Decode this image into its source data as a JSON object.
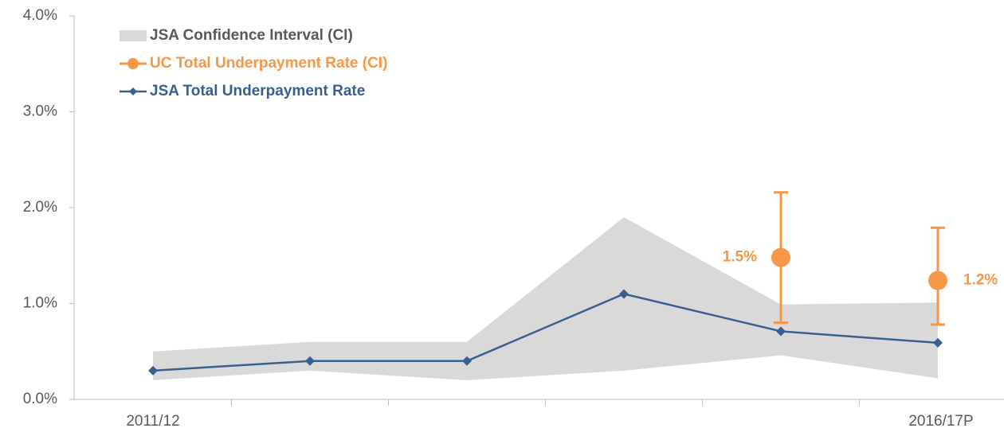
{
  "chart_data": {
    "type": "line",
    "categories": [
      "2011/12",
      null,
      null,
      null,
      null,
      "2016/17P"
    ],
    "ylim": [
      0,
      4
    ],
    "yticks": [
      {
        "value": 0,
        "label": "0.0%"
      },
      {
        "value": 1,
        "label": "1.0%"
      },
      {
        "value": 2,
        "label": "2.0%"
      },
      {
        "value": 3,
        "label": "3.0%"
      },
      {
        "value": 4,
        "label": "4.0%"
      }
    ],
    "series": [
      {
        "name": "JSA Confidence Interval (CI)",
        "color": "#d9d9d9",
        "lower": [
          0.2,
          0.3,
          0.2,
          0.3,
          0.46,
          0.22
        ],
        "upper": [
          0.5,
          0.6,
          0.6,
          1.9,
          0.99,
          1.01
        ]
      },
      {
        "name": "UC Total Underpayment Rate (CI)",
        "color": "#f79646",
        "values": [
          null,
          null,
          null,
          null,
          1.48,
          1.24
        ],
        "value_labels": [
          null,
          null,
          null,
          null,
          "1.5%",
          "1.2%"
        ],
        "lower": [
          null,
          null,
          null,
          null,
          0.8,
          0.78
        ],
        "upper": [
          null,
          null,
          null,
          null,
          2.16,
          1.79
        ]
      },
      {
        "name": "JSA Total Underpayment Rate",
        "color": "#3a5f8f",
        "values": [
          0.3,
          0.4,
          0.4,
          1.1,
          0.71,
          0.59
        ]
      }
    ]
  }
}
